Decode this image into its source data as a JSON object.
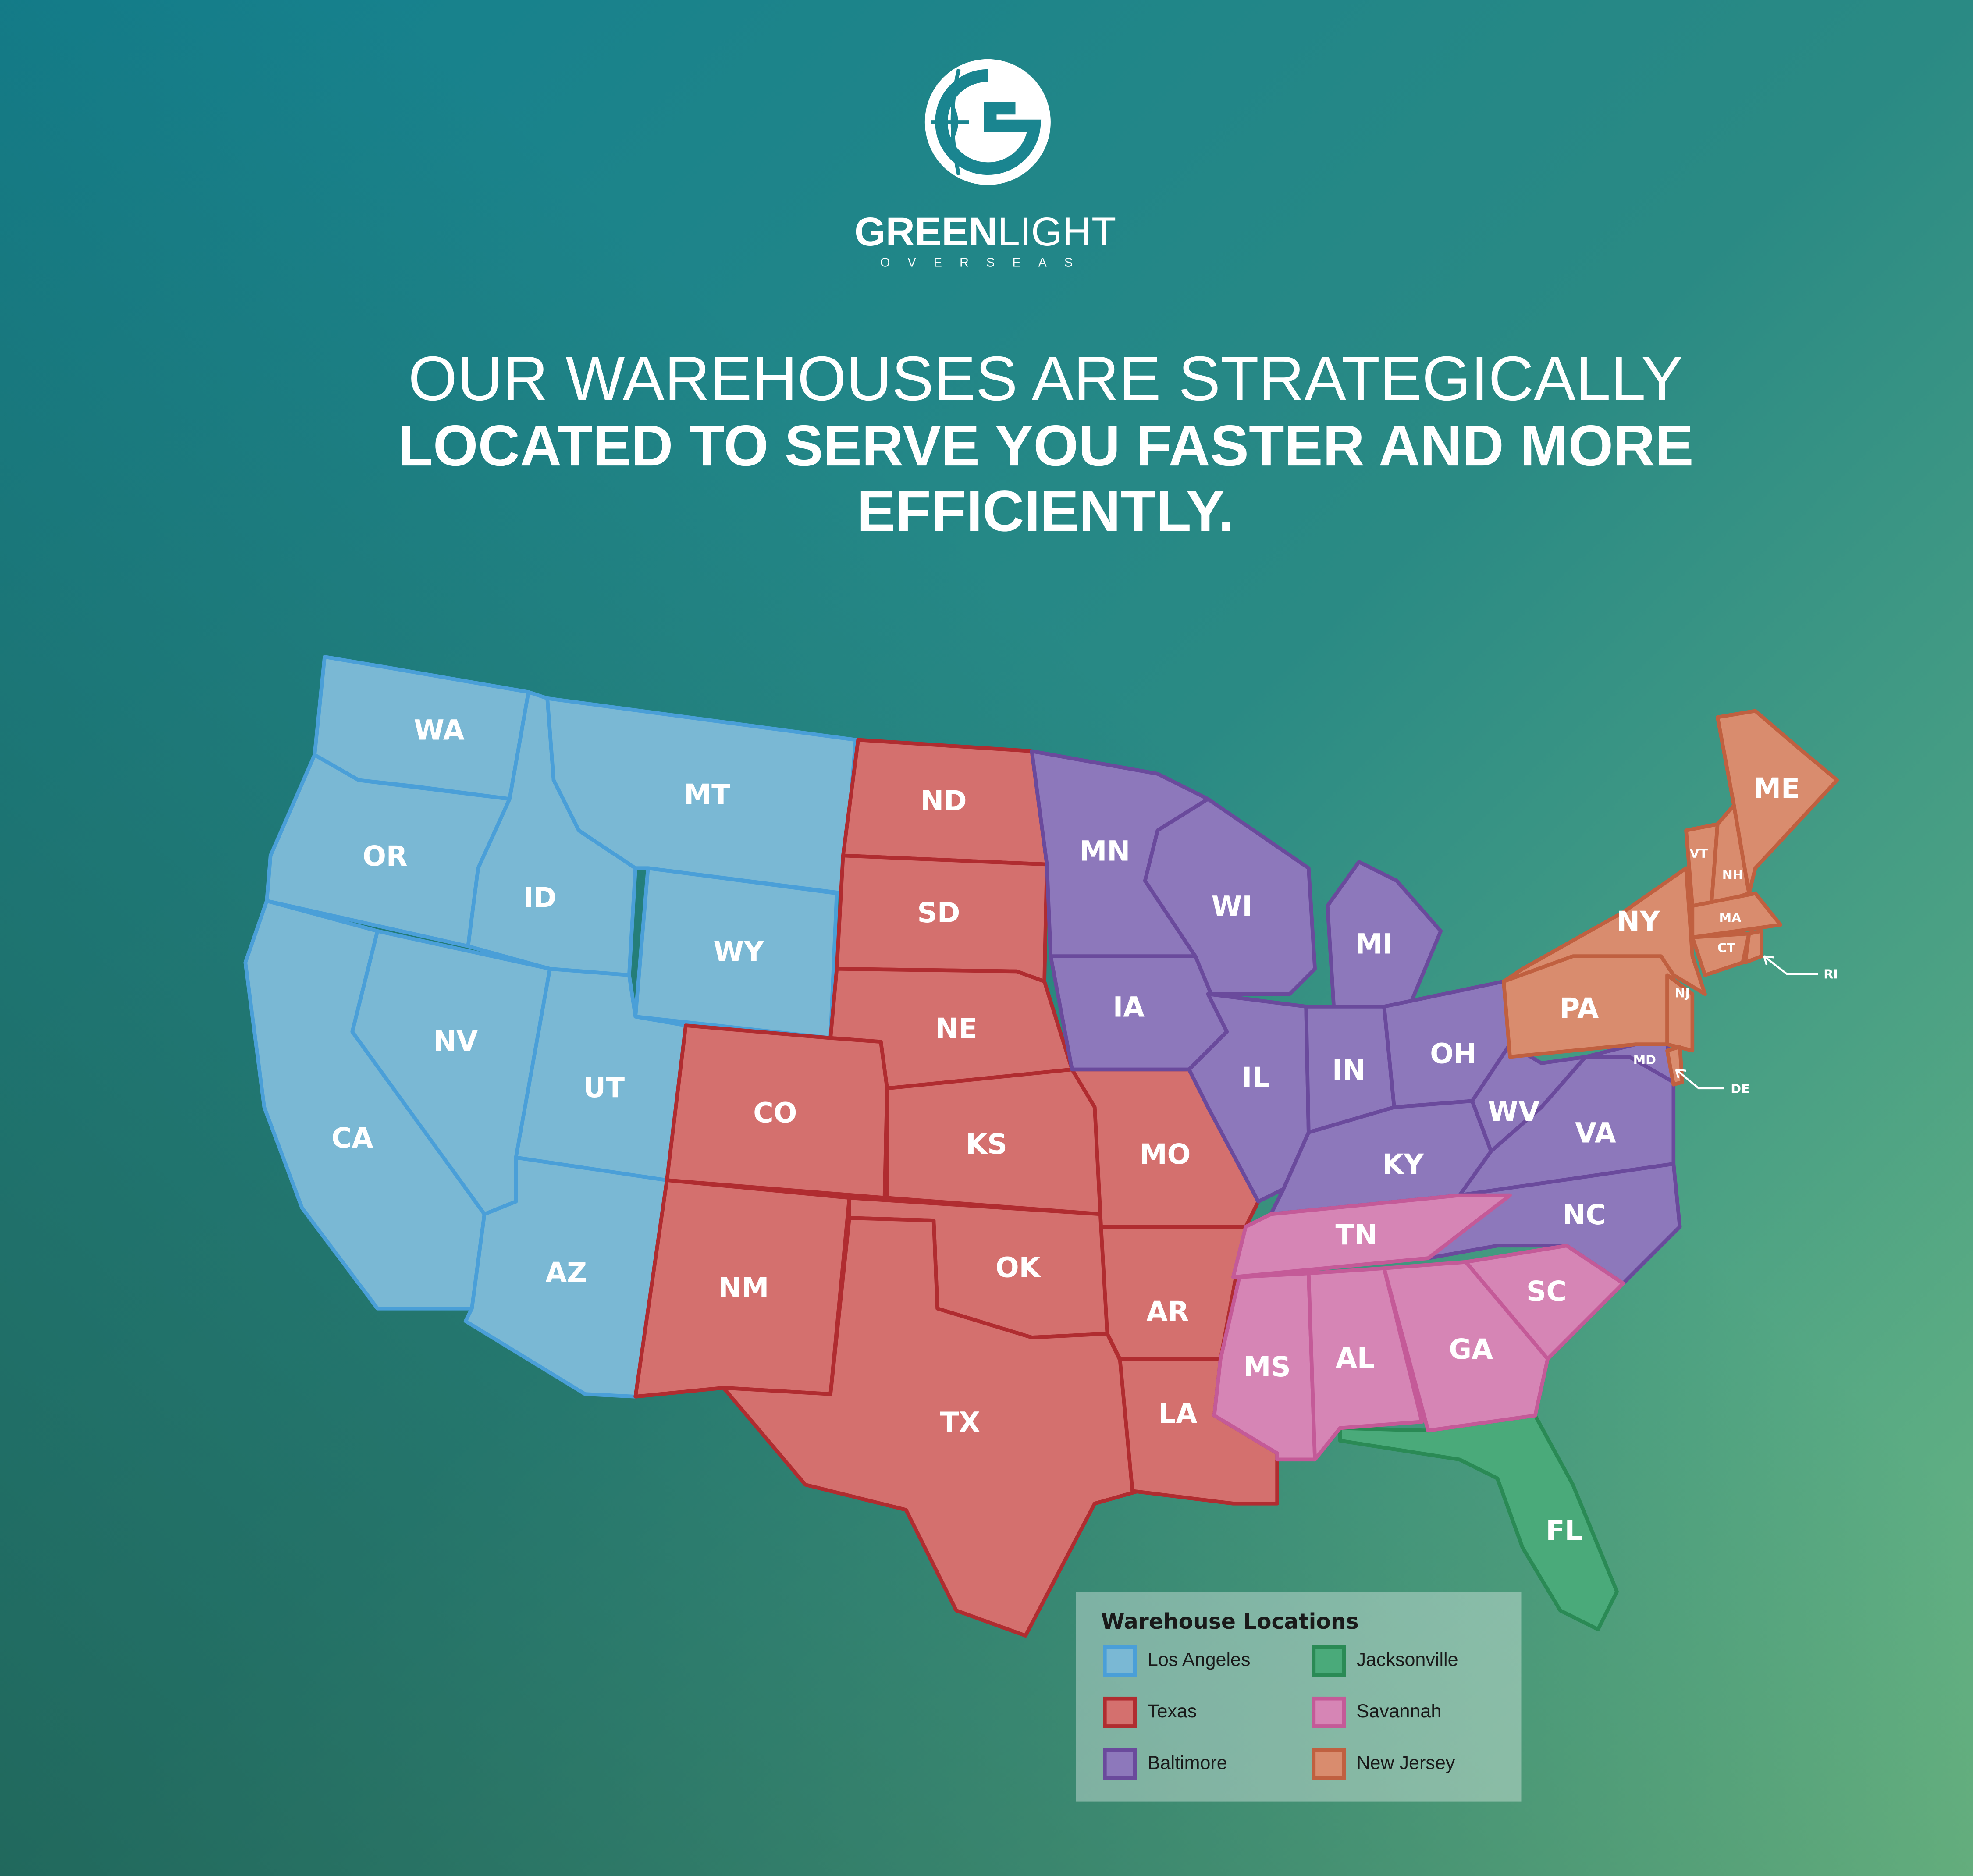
{
  "logo": {
    "brand_bold": "GREEN",
    "brand_light": "LIGHT",
    "tagline": "OVERSEAS"
  },
  "headline": {
    "line1": "OUR WAREHOUSES ARE STRATEGICALLY",
    "line2": "LOCATED TO SERVE YOU FASTER AND MORE",
    "line3": "EFFICIENTLY."
  },
  "legend": {
    "title": "Warehouse Locations"
  },
  "regions": [
    {
      "name": "Los Angeles",
      "fill": "#7ab8d4",
      "stroke": "#4a9fd8",
      "states": [
        "WA",
        "OR",
        "CA",
        "ID",
        "NV",
        "MT",
        "WY",
        "UT",
        "AZ"
      ]
    },
    {
      "name": "Texas",
      "fill": "#d4706e",
      "stroke": "#b02c30",
      "states": [
        "ND",
        "SD",
        "NE",
        "CO",
        "KS",
        "OK",
        "NM",
        "TX",
        "MO",
        "AR",
        "LA"
      ]
    },
    {
      "name": "Baltimore",
      "fill": "#8d78bb",
      "stroke": "#6a4a9c",
      "states": [
        "MN",
        "WI",
        "MI",
        "IA",
        "IL",
        "IN",
        "OH",
        "KY",
        "WV",
        "VA",
        "MD",
        "NC"
      ]
    },
    {
      "name": "Jacksonville",
      "fill": "#4aaa7a",
      "stroke": "#2a8a55",
      "states": [
        "FL"
      ]
    },
    {
      "name": "Savannah",
      "fill": "#d685b5",
      "stroke": "#c45a98",
      "states": [
        "TN",
        "MS",
        "AL",
        "GA",
        "SC"
      ]
    },
    {
      "name": "New Jersey",
      "fill": "#d98c6e",
      "stroke": "#c06040",
      "states": [
        "NY",
        "PA",
        "NJ",
        "VT",
        "NH",
        "ME",
        "MA",
        "CT",
        "RI",
        "DE"
      ]
    }
  ]
}
